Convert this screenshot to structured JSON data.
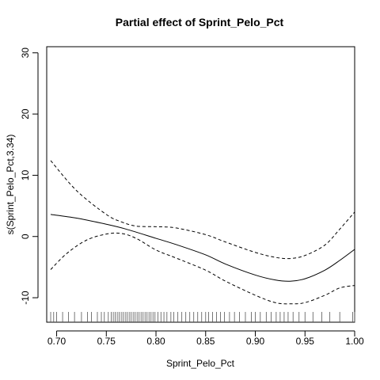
{
  "chart_data": {
    "type": "line",
    "title": "Partial effect of Sprint_Pelo_Pct",
    "xlabel": "Sprint_Pelo_Pct",
    "ylabel": "s(Sprint_Pelo_Pct,3.34)",
    "xlim": [
      0.69,
      1.0
    ],
    "ylim": [
      -14,
      31
    ],
    "xticks": [
      0.7,
      0.75,
      0.8,
      0.85,
      0.9,
      0.95,
      1.0
    ],
    "xtick_labels": [
      "0.70",
      "0.75",
      "0.80",
      "0.85",
      "0.90",
      "0.95",
      "1.00"
    ],
    "yticks": [
      -10,
      0,
      10,
      20,
      30
    ],
    "ytick_labels": [
      "-10",
      "0",
      "10",
      "20",
      "30"
    ],
    "grid": false,
    "series": [
      {
        "role": "estimate",
        "style": "solid",
        "x": [
          0.694,
          0.72,
          0.75,
          0.77,
          0.8,
          0.82,
          0.85,
          0.87,
          0.9,
          0.92,
          0.935,
          0.95,
          0.97,
          0.985,
          1.0
        ],
        "y": [
          3.6,
          3.0,
          2.0,
          1.2,
          -0.3,
          -1.3,
          -3.0,
          -4.5,
          -6.3,
          -7.1,
          -7.3,
          -6.9,
          -5.5,
          -3.9,
          -2.1
        ]
      },
      {
        "role": "upper",
        "style": "dashed",
        "x": [
          0.694,
          0.72,
          0.75,
          0.765,
          0.78,
          0.8,
          0.82,
          0.85,
          0.87,
          0.9,
          0.92,
          0.935,
          0.95,
          0.97,
          0.985,
          1.0
        ],
        "y": [
          12.4,
          7.5,
          3.6,
          2.4,
          1.7,
          1.6,
          1.4,
          0.3,
          -0.9,
          -2.6,
          -3.4,
          -3.6,
          -3.1,
          -1.4,
          1.2,
          4.0
        ]
      },
      {
        "role": "lower",
        "style": "dashed",
        "x": [
          0.694,
          0.71,
          0.73,
          0.75,
          0.765,
          0.78,
          0.8,
          0.82,
          0.85,
          0.87,
          0.9,
          0.92,
          0.935,
          0.95,
          0.97,
          0.985,
          1.0
        ],
        "y": [
          -5.4,
          -2.8,
          -0.6,
          0.4,
          0.5,
          -0.3,
          -2.2,
          -3.5,
          -5.5,
          -7.3,
          -9.6,
          -10.8,
          -11.0,
          -10.8,
          -9.6,
          -8.4,
          -8.0
        ]
      }
    ],
    "rug": [
      0.694,
      0.697,
      0.7,
      0.706,
      0.712,
      0.718,
      0.725,
      0.731,
      0.735,
      0.741,
      0.745,
      0.748,
      0.752,
      0.755,
      0.757,
      0.759,
      0.761,
      0.763,
      0.765,
      0.767,
      0.769,
      0.771,
      0.773,
      0.775,
      0.777,
      0.779,
      0.781,
      0.783,
      0.785,
      0.787,
      0.789,
      0.791,
      0.793,
      0.795,
      0.797,
      0.799,
      0.802,
      0.805,
      0.808,
      0.811,
      0.815,
      0.818,
      0.822,
      0.826,
      0.83,
      0.834,
      0.838,
      0.842,
      0.846,
      0.85,
      0.853,
      0.857,
      0.861,
      0.865,
      0.869,
      0.874,
      0.879,
      0.884,
      0.89,
      0.896,
      0.9,
      0.905,
      0.911,
      0.916,
      0.921,
      0.925,
      0.929,
      0.933,
      0.938,
      0.944,
      0.95,
      0.958,
      0.967,
      0.975,
      0.985,
      0.998,
      1.0
    ]
  }
}
